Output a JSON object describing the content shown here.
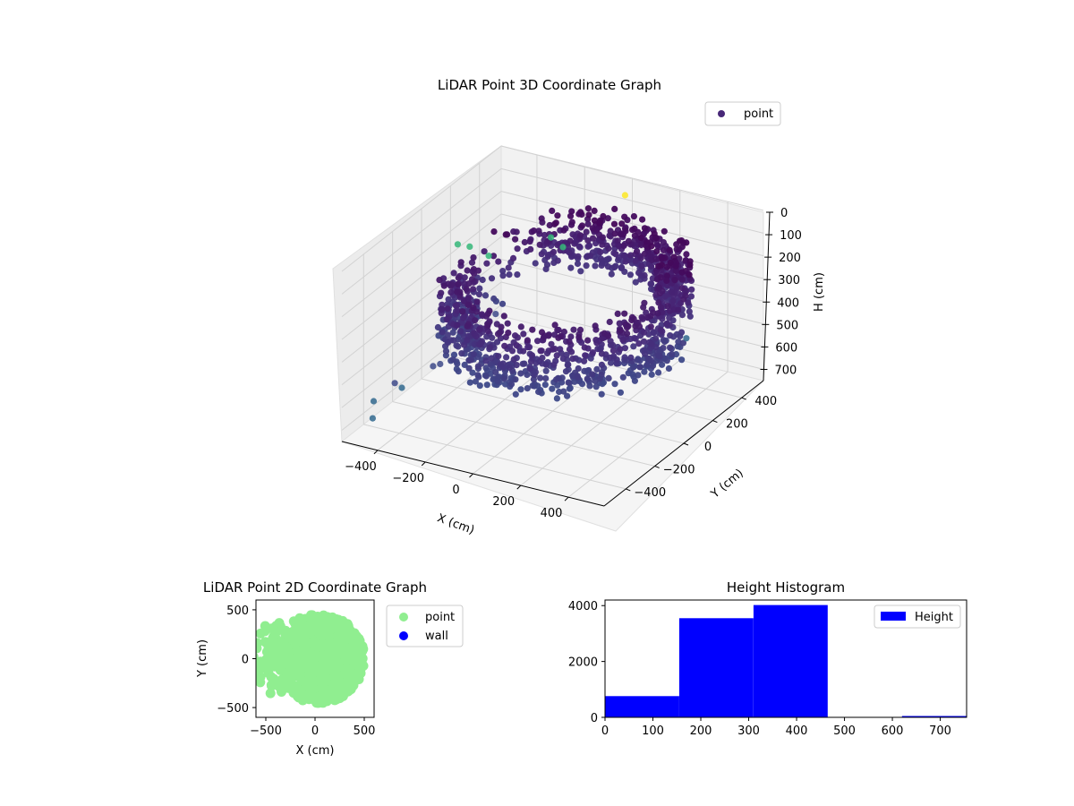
{
  "chart_data": [
    {
      "type": "scatter",
      "title": "LiDAR Point 3D Coordinate Graph",
      "xlabel": "X (cm)",
      "ylabel": "Y (cm)",
      "zlabel": "H (cm)",
      "x_ticks": [
        "−400",
        "−200",
        "0",
        "200",
        "400"
      ],
      "y_ticks": [
        "−400",
        "−200",
        "0",
        "200",
        "400"
      ],
      "z_ticks": [
        "0",
        "100",
        "200",
        "300",
        "400",
        "500",
        "600",
        "700"
      ],
      "xlim": [
        -550,
        550
      ],
      "ylim": [
        -550,
        550
      ],
      "zlim": [
        0,
        750
      ],
      "z_inverted": true,
      "grid": true,
      "colormap": "viridis",
      "legend": {
        "placement": "top-right",
        "entries": [
          {
            "label": "point",
            "color": "#482878"
          }
        ]
      },
      "cloud_description": "ring-shaped point cloud, outer radius ~450 cm, heights mostly 150-450 cm",
      "outliers": [
        {
          "x": -500,
          "y": -420,
          "h": 700,
          "color": "#31688e"
        },
        {
          "x": -520,
          "y": -380,
          "h": 650,
          "color": "#31688e"
        },
        {
          "x": -480,
          "y": -300,
          "h": 600,
          "color": "#3e4a89"
        },
        {
          "x": -420,
          "y": -350,
          "h": 580,
          "color": "#31688e"
        },
        {
          "x": -380,
          "y": -200,
          "h": 550,
          "color": "#3e4a89"
        },
        {
          "x": -320,
          "y": -250,
          "h": 500,
          "color": "#3e4a89"
        },
        {
          "x": -300,
          "y": 100,
          "h": 450,
          "color": "#3e4a89"
        },
        {
          "x": -520,
          "y": 200,
          "h": 250,
          "color": "#35b779"
        },
        {
          "x": -500,
          "y": 250,
          "h": 280,
          "color": "#35b779"
        },
        {
          "x": -420,
          "y": 250,
          "h": 300,
          "color": "#35b779"
        },
        {
          "x": -250,
          "y": 400,
          "h": 250,
          "color": "#35b779"
        },
        {
          "x": -200,
          "y": 400,
          "h": 280,
          "color": "#35b779"
        },
        {
          "x": 0,
          "y": 500,
          "h": 50,
          "color": "#fde725"
        },
        {
          "x": 500,
          "y": 100,
          "h": 350,
          "color": "#31688e"
        }
      ]
    },
    {
      "type": "scatter",
      "title": "LiDAR Point 2D Coordinate Graph",
      "xlabel": "X (cm)",
      "ylabel": "Y (cm)",
      "xlim": [
        -600,
        600
      ],
      "ylim": [
        -600,
        600
      ],
      "x_ticks": [
        "−500",
        "0",
        "500"
      ],
      "y_ticks": [
        "−500",
        "0",
        "500"
      ],
      "legend": {
        "placement": "outside-right",
        "entries": [
          {
            "label": "point",
            "color": "#90ee90"
          },
          {
            "label": "wall",
            "color": "#0000ff"
          }
        ]
      },
      "cloud_description": "filled disc of points, radius ~450 cm, with ragged extension toward negative x"
    },
    {
      "type": "bar",
      "title": "Height Histogram",
      "xlabel": "",
      "ylabel": "",
      "series": [
        {
          "name": "Height",
          "color": "#0000ff"
        }
      ],
      "bins": [
        {
          "x0": 0,
          "x1": 155,
          "count": 760
        },
        {
          "x0": 155,
          "x1": 310,
          "count": 3550
        },
        {
          "x0": 310,
          "x1": 465,
          "count": 4020
        },
        {
          "x0": 465,
          "x1": 620,
          "count": 0
        },
        {
          "x0": 620,
          "x1": 755,
          "count": 30
        }
      ],
      "xlim": [
        0,
        755
      ],
      "ylim": [
        0,
        4200
      ],
      "x_ticks": [
        "0",
        "100",
        "200",
        "300",
        "400",
        "500",
        "600",
        "700"
      ],
      "y_ticks": [
        "0",
        "2000",
        "4000"
      ],
      "legend": {
        "placement": "top-right",
        "entries": [
          {
            "label": "Height",
            "color": "#0000ff"
          }
        ]
      }
    }
  ]
}
